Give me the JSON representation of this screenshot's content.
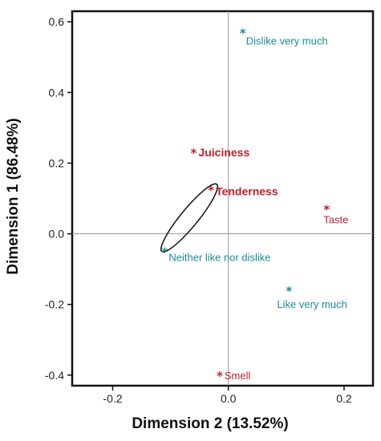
{
  "chart_data": {
    "type": "scatter",
    "xlabel": "Dimension 2 (13.52%)",
    "ylabel": "Dimension 1 (86.48%)",
    "xlim": [
      -0.27,
      0.25
    ],
    "ylim": [
      -0.43,
      0.63
    ],
    "xticks": [
      {
        "value": -0.2,
        "label": "-0.2"
      },
      {
        "value": 0.0,
        "label": "0.0"
      },
      {
        "value": 0.2,
        "label": "0.2"
      }
    ],
    "yticks": [
      {
        "value": 0.6,
        "label": "0.6"
      },
      {
        "value": 0.4,
        "label": "0.4"
      },
      {
        "value": 0.2,
        "label": "0.2"
      },
      {
        "value": 0.0,
        "label": "0.0"
      },
      {
        "value": -0.2,
        "label": "-0.2"
      },
      {
        "value": -0.4,
        "label": "-0.4"
      }
    ],
    "reference_lines": {
      "x": 0.0,
      "y": 0.0
    },
    "series": [
      {
        "color": "#c0202a",
        "points": [
          {
            "label": "Juiciness",
            "x": -0.06,
            "y": 0.23
          },
          {
            "label": "Tenderness",
            "x": -0.03,
            "y": 0.125
          },
          {
            "label": "Taste",
            "x": 0.17,
            "y": 0.07
          },
          {
            "label": "Smell",
            "x": -0.015,
            "y": -0.4
          }
        ]
      },
      {
        "color": "#1a8a9a",
        "points": [
          {
            "label": "Dislike very much",
            "x": 0.025,
            "y": 0.57
          },
          {
            "label": "Neither like nor dislike",
            "x": -0.11,
            "y": -0.05
          },
          {
            "label": "Like very much",
            "x": 0.105,
            "y": -0.16
          }
        ]
      }
    ],
    "ellipse": {
      "x1": -0.115,
      "y1": -0.05,
      "x2": -0.02,
      "y2": 0.14
    }
  }
}
